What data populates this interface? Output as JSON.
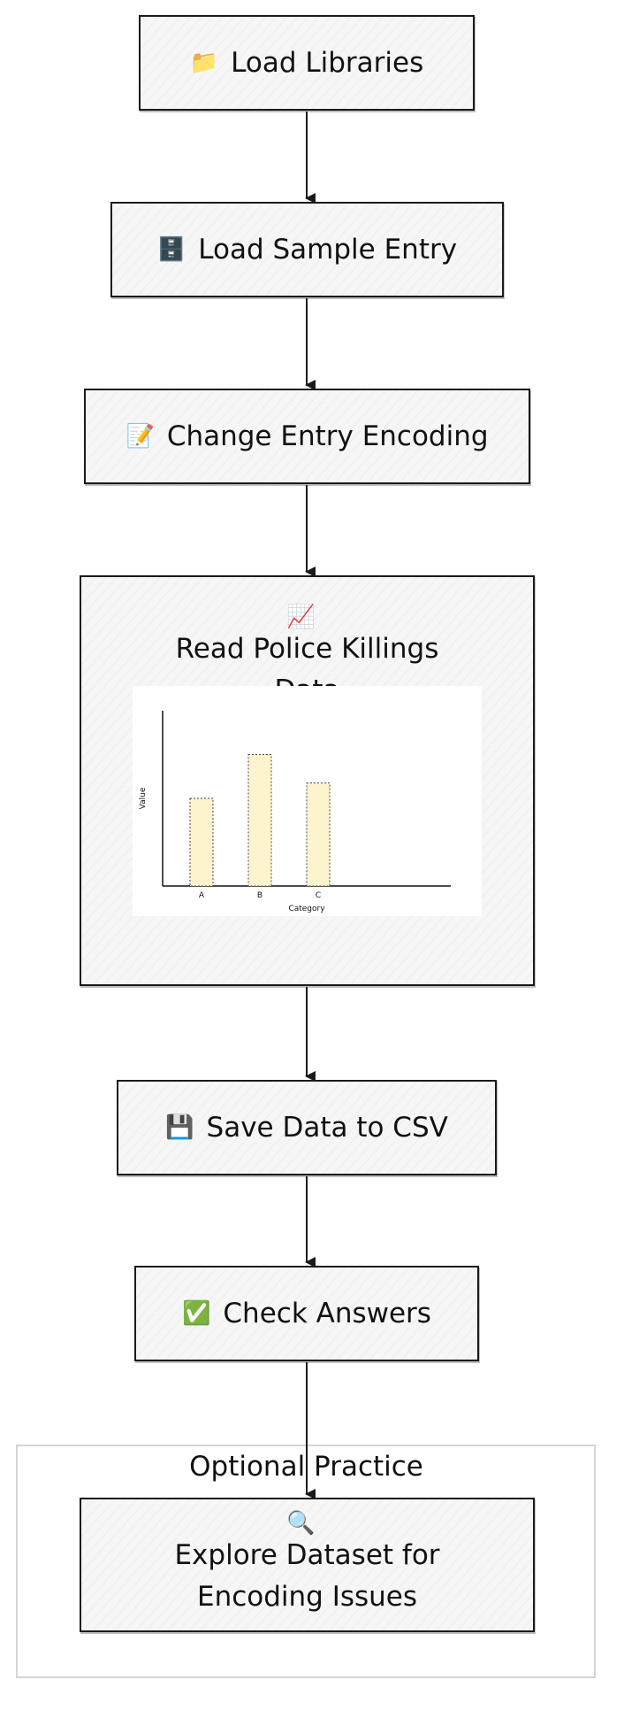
{
  "diagram": {
    "nodes": {
      "load_libraries": {
        "icon": "📁",
        "icon_name": "folder-icon",
        "label": "Load Libraries"
      },
      "load_sample_entry": {
        "icon": "🗄️",
        "icon_name": "file-cabinet-icon",
        "label": "Load Sample Entry"
      },
      "change_entry_encoding": {
        "icon": "📝",
        "icon_name": "memo-icon",
        "label": "Change Entry Encoding"
      },
      "read_police_killings": {
        "icon": "📈",
        "icon_name": "chart-increasing-icon",
        "label": "Read Police Killings Data"
      },
      "save_data_csv": {
        "icon": "💾",
        "icon_name": "floppy-disk-icon",
        "label": "Save Data to CSV"
      },
      "check_answers": {
        "icon": "✅",
        "icon_name": "check-mark-icon",
        "label": "Check Answers"
      },
      "explore_dataset": {
        "icon": "🔍",
        "icon_name": "magnifier-icon",
        "label": "Explore Dataset for Encoding Issues"
      }
    },
    "group": {
      "title": "Optional Practice"
    },
    "edges": [
      [
        "load_libraries",
        "load_sample_entry"
      ],
      [
        "load_sample_entry",
        "change_entry_encoding"
      ],
      [
        "change_entry_encoding",
        "read_police_killings"
      ],
      [
        "read_police_killings",
        "save_data_csv"
      ],
      [
        "save_data_csv",
        "check_answers"
      ],
      [
        "check_answers",
        "explore_dataset"
      ]
    ],
    "colors": {
      "stroke": "#1a1a1a",
      "node_fill": "#f6f6f6",
      "group_border": "#d5d5d5",
      "bar_fill": "#fdf3cc"
    }
  },
  "chart_data": {
    "type": "bar",
    "categories": [
      "A",
      "B",
      "C"
    ],
    "values": [
      4,
      6,
      4.7
    ],
    "xlabel": "Category",
    "ylabel": "Value",
    "ylim": [
      0,
      8
    ],
    "grid": false
  }
}
